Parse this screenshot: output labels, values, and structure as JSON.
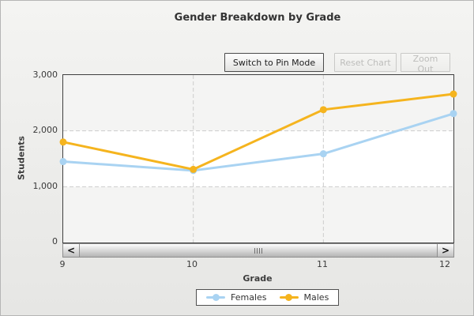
{
  "header": {
    "title": "Gender Breakdown by Grade"
  },
  "toolbar": {
    "buttons": [
      {
        "label": "Switch to Pin Mode",
        "enabled": true
      },
      {
        "label": "Reset Chart",
        "enabled": false
      },
      {
        "label": "Zoom Out",
        "enabled": false
      }
    ]
  },
  "y_axis": {
    "label": "Students",
    "ticks": [
      "3,000",
      "2,000",
      "1,000",
      "0"
    ]
  },
  "x_axis": {
    "label": "Grade",
    "ticks": [
      "9",
      "10",
      "11",
      "12"
    ]
  },
  "legend": {
    "items": [
      {
        "label": "Females"
      },
      {
        "label": "Males"
      }
    ]
  },
  "scrollbar": {
    "left_arrow": "<",
    "right_arrow": ">"
  },
  "chart_data": {
    "type": "line",
    "title": "Gender Breakdown by Grade",
    "xlabel": "Grade",
    "ylabel": "Students",
    "x": [
      9,
      10,
      11,
      12
    ],
    "categories": [
      "9",
      "10",
      "11",
      "12"
    ],
    "series": [
      {
        "name": "Females",
        "color": "#A9D3F2",
        "values": [
          1450,
          1290,
          1590,
          2310
        ]
      },
      {
        "name": "Males",
        "color": "#F5B41E",
        "values": [
          1800,
          1310,
          2380,
          2660
        ]
      }
    ],
    "xlim": [
      9,
      12
    ],
    "ylim": [
      0,
      3000
    ],
    "y_tick_step": 1000,
    "grid": "dashed",
    "grid_color": "#cdcdcd",
    "band_color": "#f4f4f3",
    "legend_position": "bottom"
  }
}
